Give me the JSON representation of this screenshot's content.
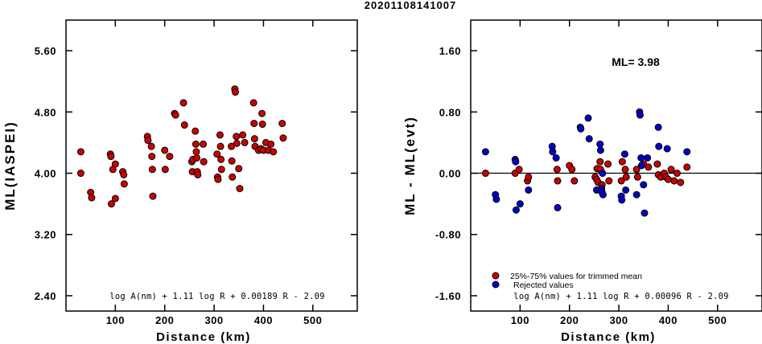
{
  "title": "20201108141007",
  "colors": {
    "accepted": "#cc0000",
    "rejected": "#0000cc",
    "axis": "#000000"
  },
  "chart_data": [
    {
      "type": "scatter",
      "xlabel": "Distance (km)",
      "ylabel": "ML(IASPEI)",
      "xlim": [
        0,
        590
      ],
      "ylim": [
        2.2,
        6.0
      ],
      "xticks": [
        100,
        200,
        300,
        400,
        500
      ],
      "xtick_labels": [
        "100",
        "200",
        "300",
        "400",
        "500"
      ],
      "yticks": [
        2.4,
        3.2,
        4.0,
        4.8,
        5.6
      ],
      "ytick_labels": [
        "2.40",
        "3.20",
        "4.00",
        "4.80",
        "5.60"
      ],
      "grid": false,
      "formula": "log A(nm) + 1.11 log R + 0.00189 R - 2.09",
      "series": [
        {
          "color": "#cc0000",
          "points": [
            [
              30,
              4.28
            ],
            [
              30,
              4.0
            ],
            [
              50,
              3.75
            ],
            [
              52,
              3.68
            ],
            [
              90,
              4.25
            ],
            [
              91,
              4.22
            ],
            [
              92,
              3.6
            ],
            [
              95,
              4.05
            ],
            [
              100,
              3.67
            ],
            [
              100,
              4.12
            ],
            [
              115,
              4.02
            ],
            [
              117,
              3.98
            ],
            [
              118,
              3.86
            ],
            [
              165,
              4.48
            ],
            [
              166,
              4.43
            ],
            [
              173,
              4.35
            ],
            [
              174,
              4.22
            ],
            [
              175,
              4.05
            ],
            [
              176,
              3.7
            ],
            [
              200,
              4.3
            ],
            [
              201,
              4.05
            ],
            [
              210,
              4.22
            ],
            [
              220,
              4.78
            ],
            [
              222,
              4.76
            ],
            [
              238,
              4.92
            ],
            [
              240,
              4.63
            ],
            [
              255,
              4.15
            ],
            [
              256,
              4.02
            ],
            [
              257,
              4.18
            ],
            [
              262,
              4.55
            ],
            [
              263,
              4.38
            ],
            [
              264,
              4.28
            ],
            [
              265,
              4.2
            ],
            [
              266,
              4.02
            ],
            [
              267,
              3.98
            ],
            [
              278,
              4.38
            ],
            [
              279,
              4.15
            ],
            [
              306,
              4.25
            ],
            [
              307,
              3.95
            ],
            [
              308,
              3.92
            ],
            [
              312,
              4.5
            ],
            [
              313,
              4.35
            ],
            [
              314,
              4.18
            ],
            [
              315,
              4.05
            ],
            [
              335,
              4.35
            ],
            [
              336,
              4.16
            ],
            [
              337,
              3.95
            ],
            [
              342,
              5.1
            ],
            [
              343,
              5.06
            ],
            [
              345,
              4.48
            ],
            [
              346,
              4.39
            ],
            [
              350,
              4.06
            ],
            [
              352,
              3.8
            ],
            [
              358,
              4.5
            ],
            [
              362,
              4.4
            ],
            [
              380,
              4.92
            ],
            [
              381,
              4.65
            ],
            [
              382,
              4.45
            ],
            [
              383,
              4.35
            ],
            [
              390,
              4.3
            ],
            [
              395,
              4.32
            ],
            [
              397,
              4.78
            ],
            [
              398,
              4.64
            ],
            [
              400,
              4.3
            ],
            [
              405,
              4.4
            ],
            [
              410,
              4.3
            ],
            [
              415,
              4.38
            ],
            [
              420,
              4.28
            ],
            [
              438,
              4.65
            ],
            [
              440,
              4.46
            ]
          ]
        }
      ]
    },
    {
      "type": "scatter",
      "xlabel": "Distance (km)",
      "ylabel": "ML - ML(evt)",
      "xlim": [
        0,
        590
      ],
      "ylim": [
        -1.8,
        2.0
      ],
      "xticks": [
        100,
        200,
        300,
        400,
        500
      ],
      "xtick_labels": [
        "100",
        "200",
        "300",
        "400",
        "500"
      ],
      "yticks": [
        -1.6,
        -0.8,
        0.0,
        0.8,
        1.6
      ],
      "ytick_labels": [
        "-1.60",
        "-0.80",
        "0.00",
        "0.80",
        "1.60"
      ],
      "grid": false,
      "ml_label": "ML= 3.98",
      "formula": "log A(nm) + 1.11 log R + 0.00096 R - 2.09",
      "legend": [
        {
          "label": "25%-75% values for trimmed mean",
          "color": "#cc0000"
        },
        {
          "label": "Rejected values",
          "color": "#0000cc"
        }
      ],
      "series": [
        {
          "name": "25%-75% values for trimmed mean",
          "color": "#cc0000",
          "points": [
            [
              30,
              0.0
            ],
            [
              90,
              0.0
            ],
            [
              98,
              0.05
            ],
            [
              115,
              -0.1
            ],
            [
              117,
              -0.05
            ],
            [
              175,
              0.05
            ],
            [
              176,
              -0.1
            ],
            [
              200,
              0.1
            ],
            [
              205,
              0.05
            ],
            [
              210,
              -0.1
            ],
            [
              252,
              -0.05
            ],
            [
              255,
              -0.08
            ],
            [
              256,
              0.06
            ],
            [
              258,
              -0.12
            ],
            [
              262,
              0.15
            ],
            [
              263,
              0.05
            ],
            [
              266,
              -0.15
            ],
            [
              278,
              0.12
            ],
            [
              280,
              -0.1
            ],
            [
              305,
              -0.1
            ],
            [
              307,
              0.15
            ],
            [
              313,
              0.05
            ],
            [
              315,
              -0.05
            ],
            [
              336,
              0.05
            ],
            [
              338,
              -0.05
            ],
            [
              350,
              0.12
            ],
            [
              360,
              0.08
            ],
            [
              378,
              0.12
            ],
            [
              380,
              -0.02
            ],
            [
              385,
              -0.05
            ],
            [
              392,
              0.0
            ],
            [
              395,
              -0.05
            ],
            [
              400,
              -0.08
            ],
            [
              406,
              0.05
            ],
            [
              412,
              -0.1
            ],
            [
              418,
              0.0
            ],
            [
              425,
              -0.12
            ],
            [
              438,
              0.08
            ]
          ]
        },
        {
          "name": "Rejected values",
          "color": "#0000cc",
          "points": [
            [
              30,
              0.28
            ],
            [
              50,
              -0.28
            ],
            [
              52,
              -0.34
            ],
            [
              90,
              0.18
            ],
            [
              91,
              0.15
            ],
            [
              92,
              -0.48
            ],
            [
              100,
              -0.4
            ],
            [
              117,
              -0.22
            ],
            [
              165,
              0.35
            ],
            [
              166,
              0.28
            ],
            [
              173,
              0.2
            ],
            [
              176,
              -0.45
            ],
            [
              222,
              0.6
            ],
            [
              223,
              0.58
            ],
            [
              238,
              0.72
            ],
            [
              240,
              0.45
            ],
            [
              255,
              -0.22
            ],
            [
              262,
              0.38
            ],
            [
              263,
              0.3
            ],
            [
              265,
              -0.2
            ],
            [
              266,
              -0.25
            ],
            [
              267,
              0.0
            ],
            [
              268,
              -0.28
            ],
            [
              305,
              -0.3
            ],
            [
              306,
              -0.35
            ],
            [
              312,
              0.25
            ],
            [
              314,
              -0.22
            ],
            [
              336,
              -0.28
            ],
            [
              342,
              0.8
            ],
            [
              343,
              0.76
            ],
            [
              345,
              0.2
            ],
            [
              346,
              0.1
            ],
            [
              350,
              -0.15
            ],
            [
              352,
              -0.52
            ],
            [
              358,
              0.2
            ],
            [
              380,
              0.6
            ],
            [
              381,
              0.35
            ],
            [
              398,
              0.32
            ],
            [
              438,
              0.28
            ]
          ]
        }
      ]
    }
  ]
}
